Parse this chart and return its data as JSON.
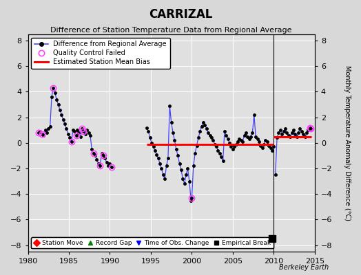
{
  "title": "CARRIZAL",
  "subtitle": "Difference of Station Temperature Data from Regional Average",
  "ylabel": "Monthly Temperature Anomaly Difference (°C)",
  "credit": "Berkeley Earth",
  "xlim": [
    1980,
    2015
  ],
  "ylim": [
    -8.5,
    8.5
  ],
  "yticks": [
    -8,
    -6,
    -4,
    -2,
    0,
    2,
    4,
    6,
    8
  ],
  "xticks": [
    1980,
    1985,
    1990,
    1995,
    2000,
    2005,
    2010,
    2015
  ],
  "bg_color": "#d8d8d8",
  "plot_bg_color": "#e0e0e0",
  "grid_color": "white",
  "line_color": "#4444ff",
  "marker_color": "black",
  "qc_color": "#ff44ff",
  "bias_color": "red",
  "segments": [
    {
      "x": [
        1981.3,
        1981.5,
        1981.7,
        1981.9,
        1982.1,
        1982.3,
        1982.5,
        1982.7,
        1982.9,
        1983.1,
        1983.3,
        1983.5,
        1983.7,
        1983.9,
        1984.1,
        1984.3,
        1984.5,
        1984.7,
        1984.9,
        1985.1,
        1985.3,
        1985.5,
        1985.7,
        1985.9
      ],
      "y": [
        0.8,
        0.9,
        0.7,
        0.6,
        1.0,
        0.8,
        1.1,
        1.3,
        3.6,
        4.3,
        3.9,
        3.4,
        3.0,
        2.6,
        2.2,
        1.8,
        1.5,
        1.1,
        0.7,
        0.4,
        0.1,
        1.0,
        0.9,
        0.6
      ],
      "qc": [
        true,
        false,
        true,
        false,
        false,
        false,
        false,
        false,
        false,
        true,
        false,
        false,
        false,
        false,
        false,
        false,
        false,
        false,
        false,
        false,
        true,
        false,
        false,
        true
      ]
    },
    {
      "x": [
        1986.0,
        1986.2,
        1986.4,
        1986.6,
        1986.8,
        1987.0,
        1987.2,
        1987.4,
        1987.6,
        1987.8,
        1988.0,
        1988.2,
        1988.4,
        1988.6,
        1988.8,
        1989.0,
        1989.2,
        1989.4,
        1989.6,
        1989.8,
        1990.0,
        1990.2
      ],
      "y": [
        1.0,
        0.8,
        0.5,
        1.1,
        0.9,
        0.7,
        1.0,
        0.8,
        0.6,
        -0.5,
        -0.8,
        -1.0,
        -1.3,
        -1.6,
        -1.8,
        -0.8,
        -1.0,
        -1.2,
        -1.5,
        -1.8,
        -1.6,
        -1.9
      ],
      "qc": [
        false,
        false,
        false,
        true,
        true,
        false,
        false,
        false,
        false,
        false,
        true,
        false,
        false,
        false,
        true,
        false,
        true,
        false,
        false,
        false,
        false,
        true
      ]
    },
    {
      "x": [
        1994.5,
        1994.7,
        1994.9,
        1995.1,
        1995.3,
        1995.5,
        1995.7,
        1995.9,
        1996.1,
        1996.3,
        1996.5,
        1996.7,
        1996.9,
        1997.1,
        1997.3,
        1997.5,
        1997.7,
        1997.9,
        1998.1,
        1998.3,
        1998.5,
        1998.7,
        1998.9,
        1999.1,
        1999.3,
        1999.5,
        1999.7,
        1999.9,
        2000.0,
        2000.2,
        2000.4,
        2000.6,
        2000.8,
        2001.0,
        2001.2,
        2001.4,
        2001.6,
        2001.8,
        2002.0,
        2002.2,
        2002.4,
        2002.6,
        2002.8,
        2003.0,
        2003.2,
        2003.4,
        2003.6,
        2003.8,
        2004.0,
        2004.2,
        2004.4,
        2004.6,
        2004.8,
        2005.0,
        2005.2,
        2005.4,
        2005.6,
        2005.8,
        2006.0,
        2006.2,
        2006.4,
        2006.6,
        2006.8,
        2007.0,
        2007.2,
        2007.4,
        2007.6,
        2007.8,
        2008.0,
        2008.2,
        2008.4,
        2008.6,
        2008.8,
        2009.0,
        2009.2,
        2009.4,
        2009.6,
        2009.8,
        2010.0
      ],
      "y": [
        1.2,
        0.9,
        0.4,
        0.0,
        -0.3,
        -0.6,
        -0.9,
        -1.2,
        -1.6,
        -2.0,
        -2.5,
        -2.8,
        -1.8,
        -1.2,
        2.9,
        1.6,
        0.8,
        0.2,
        -0.5,
        -1.0,
        -1.6,
        -2.1,
        -2.8,
        -3.2,
        -2.5,
        -2.0,
        -3.0,
        -4.5,
        -4.3,
        -1.8,
        -0.8,
        -0.2,
        0.4,
        0.9,
        1.3,
        1.6,
        1.4,
        1.1,
        0.8,
        0.6,
        0.4,
        0.2,
        -0.1,
        -0.3,
        -0.6,
        -0.8,
        -1.1,
        -1.4,
        0.9,
        0.6,
        0.3,
        0.0,
        -0.3,
        -0.5,
        -0.3,
        -0.1,
        0.1,
        0.3,
        0.2,
        0.1,
        0.6,
        0.8,
        0.5,
        0.3,
        0.5,
        0.8,
        2.2,
        0.5,
        0.3,
        0.1,
        -0.2,
        -0.4,
        -0.1,
        0.2,
        0.1,
        -0.2,
        -0.4,
        -0.6,
        -0.3
      ],
      "qc": [
        false,
        false,
        false,
        false,
        false,
        false,
        false,
        false,
        false,
        false,
        false,
        false,
        false,
        false,
        false,
        false,
        false,
        false,
        false,
        false,
        false,
        false,
        false,
        false,
        false,
        false,
        false,
        false,
        true,
        false,
        false,
        false,
        false,
        false,
        false,
        false,
        false,
        false,
        false,
        false,
        false,
        false,
        false,
        false,
        false,
        false,
        false,
        false,
        false,
        false,
        false,
        false,
        false,
        false,
        false,
        false,
        false,
        false,
        false,
        false,
        false,
        false,
        false,
        false,
        false,
        false,
        false,
        false,
        false,
        false,
        false,
        false,
        false,
        false,
        false,
        false,
        false,
        false,
        false
      ]
    },
    {
      "x": [
        2010.2,
        2010.4,
        2010.6,
        2010.8,
        2011.0,
        2011.2,
        2011.4,
        2011.6,
        2011.8,
        2012.0,
        2012.2,
        2012.4,
        2012.6,
        2012.8,
        2013.0,
        2013.2,
        2013.4,
        2013.6,
        2013.8,
        2014.0,
        2014.2,
        2014.4,
        2014.5
      ],
      "y": [
        -2.5,
        0.4,
        0.8,
        1.0,
        0.7,
        0.9,
        1.1,
        0.8,
        0.6,
        0.5,
        0.8,
        1.0,
        0.7,
        0.5,
        0.8,
        1.1,
        0.9,
        0.7,
        0.5,
        0.8,
        1.0,
        1.2,
        1.1
      ],
      "qc": [
        false,
        false,
        false,
        false,
        false,
        false,
        false,
        false,
        false,
        false,
        false,
        false,
        false,
        false,
        false,
        false,
        false,
        false,
        false,
        false,
        false,
        true,
        true
      ]
    }
  ],
  "bias_segments": [
    {
      "x": [
        1994.5,
        2010.0
      ],
      "y": [
        -0.1,
        -0.1
      ]
    },
    {
      "x": [
        2010.0,
        2014.6
      ],
      "y": [
        0.5,
        0.5
      ]
    }
  ],
  "empirical_break_x": 2009.8,
  "empirical_break_y": -7.5,
  "vertical_line_x": 2010.0
}
